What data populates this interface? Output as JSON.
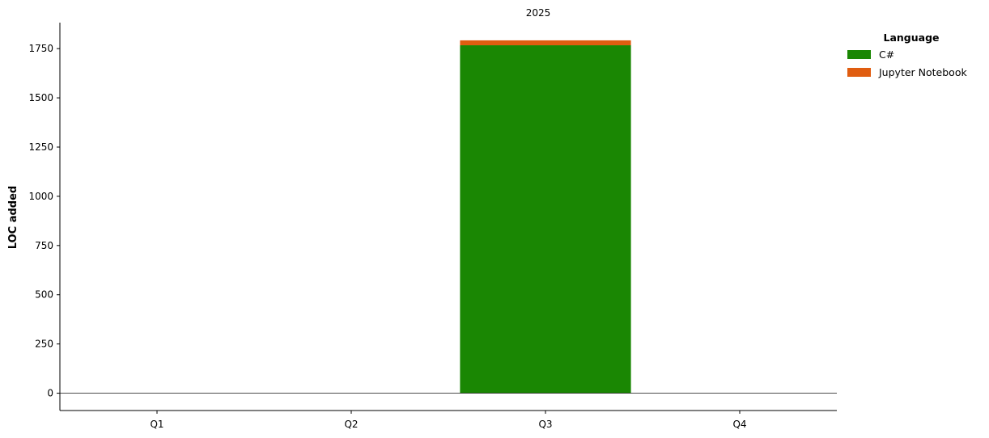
{
  "chart_data": {
    "type": "bar",
    "stacked": true,
    "title": "2025",
    "xlabel": "",
    "ylabel": "LOC added",
    "categories": [
      "Q1",
      "Q2",
      "Q3",
      "Q4"
    ],
    "series": [
      {
        "name": "C#",
        "color": "#1a8703",
        "values": [
          0,
          0,
          1767,
          0
        ]
      },
      {
        "name": "Jupyter Notebook",
        "color": "#e05d10",
        "values": [
          0,
          0,
          25,
          0
        ]
      }
    ],
    "ylim": [
      -88,
      1882
    ],
    "yticks": [
      0,
      250,
      500,
      750,
      1000,
      1250,
      1500,
      1750
    ],
    "zero_line": true,
    "grid": false,
    "legend": {
      "title": "Language",
      "placement": "outside-top-right"
    }
  }
}
